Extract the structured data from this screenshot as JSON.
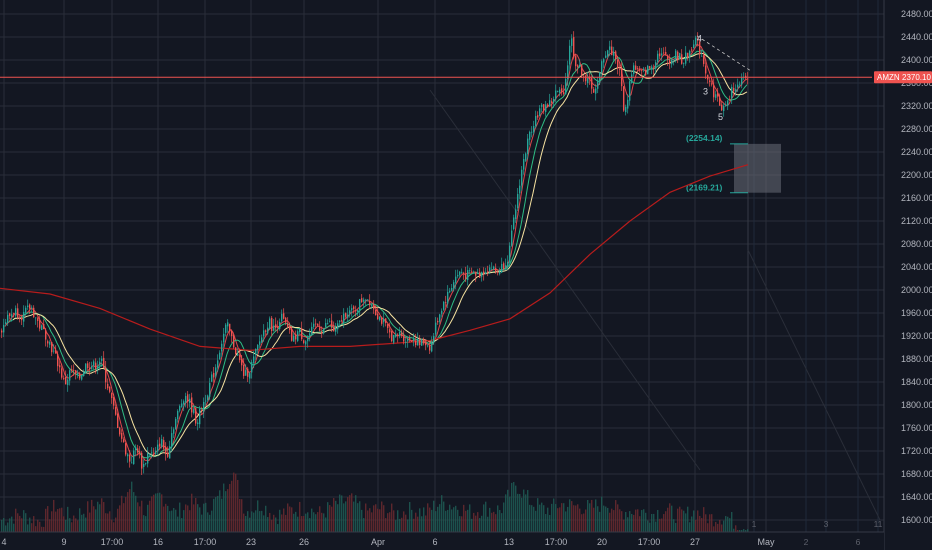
{
  "chart_data": {
    "type": "candlestick",
    "y_axis": {
      "ticks": [
        "2480.00",
        "2440.00",
        "2400.00",
        "2360.00",
        "2320.00",
        "2280.00",
        "2240.00",
        "2200.00",
        "2160.00",
        "2120.00",
        "2080.00",
        "2040.00",
        "2000.00",
        "1960.00",
        "1920.00",
        "1880.00",
        "1840.00",
        "1800.00",
        "1760.00",
        "1720.00",
        "1680.00",
        "1640.00",
        "1600.00"
      ],
      "range": [
        1592,
        2492
      ]
    },
    "x_axis": {
      "ticks": [
        "4",
        "9",
        "17:00",
        "16",
        "17:00",
        "23",
        "26",
        "Apr",
        "6",
        "13",
        "17:00",
        "20",
        "17:00",
        "27",
        "May"
      ],
      "future_ticks": [
        "1",
        "2",
        "3",
        "6",
        "11"
      ]
    },
    "last_price": {
      "symbol": "AMZN",
      "value": "2370.10",
      "raw": 2370.1
    },
    "targets": [
      {
        "label": "(2254.14)",
        "value": 2254.14
      },
      {
        "label": "(2169.21)",
        "value": 2169.21
      }
    ],
    "wave_labels": [
      "3",
      "4",
      "5"
    ],
    "price_path": [
      [
        0,
        1930
      ],
      [
        6,
        1950
      ],
      [
        14,
        1965
      ],
      [
        22,
        1955
      ],
      [
        30,
        1972
      ],
      [
        38,
        1940
      ],
      [
        46,
        1920
      ],
      [
        52,
        1895
      ],
      [
        58,
        1870
      ],
      [
        64,
        1835
      ],
      [
        70,
        1860
      ],
      [
        78,
        1845
      ],
      [
        86,
        1872
      ],
      [
        94,
        1868
      ],
      [
        100,
        1880
      ],
      [
        106,
        1840
      ],
      [
        112,
        1800
      ],
      [
        118,
        1760
      ],
      [
        124,
        1725
      ],
      [
        130,
        1700
      ],
      [
        136,
        1730
      ],
      [
        142,
        1690
      ],
      [
        148,
        1720
      ],
      [
        154,
        1710
      ],
      [
        160,
        1740
      ],
      [
        166,
        1710
      ],
      [
        172,
        1760
      ],
      [
        178,
        1790
      ],
      [
        184,
        1820
      ],
      [
        190,
        1800
      ],
      [
        196,
        1770
      ],
      [
        202,
        1800
      ],
      [
        208,
        1830
      ],
      [
        214,
        1860
      ],
      [
        220,
        1905
      ],
      [
        226,
        1940
      ],
      [
        232,
        1910
      ],
      [
        238,
        1880
      ],
      [
        244,
        1850
      ],
      [
        250,
        1865
      ],
      [
        256,
        1895
      ],
      [
        262,
        1925
      ],
      [
        268,
        1945
      ],
      [
        274,
        1930
      ],
      [
        280,
        1955
      ],
      [
        286,
        1935
      ],
      [
        292,
        1910
      ],
      [
        298,
        1930
      ],
      [
        304,
        1912
      ],
      [
        310,
        1925
      ],
      [
        316,
        1940
      ],
      [
        322,
        1930
      ],
      [
        328,
        1945
      ],
      [
        334,
        1925
      ],
      [
        340,
        1945
      ],
      [
        346,
        1965
      ],
      [
        352,
        1960
      ],
      [
        358,
        1975
      ],
      [
        364,
        1990
      ],
      [
        370,
        1980
      ],
      [
        376,
        1960
      ],
      [
        382,
        1945
      ],
      [
        388,
        1925
      ],
      [
        394,
        1915
      ],
      [
        400,
        1925
      ],
      [
        406,
        1912
      ],
      [
        412,
        1918
      ],
      [
        418,
        1905
      ],
      [
        424,
        1910
      ],
      [
        430,
        1900
      ],
      [
        436,
        1945
      ],
      [
        442,
        1975
      ],
      [
        448,
        1995
      ],
      [
        454,
        2020
      ],
      [
        460,
        2032
      ],
      [
        466,
        2025
      ],
      [
        472,
        2030
      ],
      [
        478,
        2026
      ],
      [
        484,
        2036
      ],
      [
        490,
        2040
      ],
      [
        496,
        2030
      ],
      [
        502,
        2042
      ],
      [
        508,
        2060
      ],
      [
        514,
        2130
      ],
      [
        520,
        2200
      ],
      [
        526,
        2250
      ],
      [
        532,
        2290
      ],
      [
        538,
        2310
      ],
      [
        544,
        2320
      ],
      [
        550,
        2325
      ],
      [
        556,
        2345
      ],
      [
        562,
        2340
      ],
      [
        566,
        2378
      ],
      [
        570,
        2445
      ],
      [
        574,
        2400
      ],
      [
        578,
        2385
      ],
      [
        582,
        2380
      ],
      [
        586,
        2360
      ],
      [
        590,
        2362
      ],
      [
        594,
        2342
      ],
      [
        598,
        2362
      ],
      [
        602,
        2405
      ],
      [
        608,
        2420
      ],
      [
        614,
        2410
      ],
      [
        620,
        2370
      ],
      [
        624,
        2300
      ],
      [
        628,
        2350
      ],
      [
        632,
        2390
      ],
      [
        636,
        2385
      ],
      [
        640,
        2375
      ],
      [
        646,
        2382
      ],
      [
        652,
        2390
      ],
      [
        658,
        2415
      ],
      [
        664,
        2405
      ],
      [
        670,
        2400
      ],
      [
        676,
        2410
      ],
      [
        682,
        2398
      ],
      [
        688,
        2410
      ],
      [
        694,
        2440
      ],
      [
        698,
        2420
      ],
      [
        702,
        2405
      ],
      [
        706,
        2375
      ],
      [
        710,
        2355
      ],
      [
        714,
        2340
      ],
      [
        718,
        2328
      ],
      [
        722,
        2315
      ],
      [
        726,
        2320
      ],
      [
        730,
        2340
      ],
      [
        734,
        2358
      ],
      [
        738,
        2350
      ],
      [
        742,
        2365
      ],
      [
        746,
        2368
      ],
      [
        748,
        2370
      ]
    ],
    "sma_long": [
      [
        0,
        2003
      ],
      [
        50,
        1993
      ],
      [
        100,
        1968
      ],
      [
        150,
        1932
      ],
      [
        200,
        1902
      ],
      [
        250,
        1895
      ],
      [
        300,
        1902
      ],
      [
        350,
        1902
      ],
      [
        400,
        1908
      ],
      [
        430,
        1912
      ],
      [
        470,
        1930
      ],
      [
        510,
        1950
      ],
      [
        550,
        1995
      ],
      [
        590,
        2062
      ],
      [
        630,
        2120
      ],
      [
        670,
        2170
      ],
      [
        710,
        2198
      ],
      [
        748,
        2218
      ]
    ],
    "volumes": [
      [
        0,
        0.12
      ],
      [
        20,
        0.18
      ],
      [
        40,
        0.1
      ],
      [
        55,
        0.26
      ],
      [
        70,
        0.14
      ],
      [
        85,
        0.22
      ],
      [
        100,
        0.3
      ],
      [
        115,
        0.16
      ],
      [
        130,
        0.46
      ],
      [
        145,
        0.2
      ],
      [
        160,
        0.38
      ],
      [
        175,
        0.18
      ],
      [
        190,
        0.3
      ],
      [
        205,
        0.22
      ],
      [
        220,
        0.36
      ],
      [
        232,
        0.62
      ],
      [
        245,
        0.2
      ],
      [
        260,
        0.28
      ],
      [
        275,
        0.16
      ],
      [
        290,
        0.22
      ],
      [
        305,
        0.24
      ],
      [
        320,
        0.18
      ],
      [
        335,
        0.28
      ],
      [
        350,
        0.32
      ],
      [
        365,
        0.2
      ],
      [
        380,
        0.24
      ],
      [
        395,
        0.18
      ],
      [
        410,
        0.22
      ],
      [
        425,
        0.2
      ],
      [
        440,
        0.3
      ],
      [
        455,
        0.26
      ],
      [
        470,
        0.2
      ],
      [
        485,
        0.24
      ],
      [
        500,
        0.22
      ],
      [
        515,
        0.48
      ],
      [
        530,
        0.3
      ],
      [
        545,
        0.22
      ],
      [
        560,
        0.28
      ],
      [
        575,
        0.26
      ],
      [
        590,
        0.24
      ],
      [
        605,
        0.3
      ],
      [
        620,
        0.2
      ],
      [
        635,
        0.22
      ],
      [
        650,
        0.18
      ],
      [
        665,
        0.22
      ],
      [
        680,
        0.16
      ],
      [
        695,
        0.2
      ],
      [
        710,
        0.14
      ],
      [
        725,
        0.16
      ],
      [
        740,
        0.06
      ]
    ]
  }
}
